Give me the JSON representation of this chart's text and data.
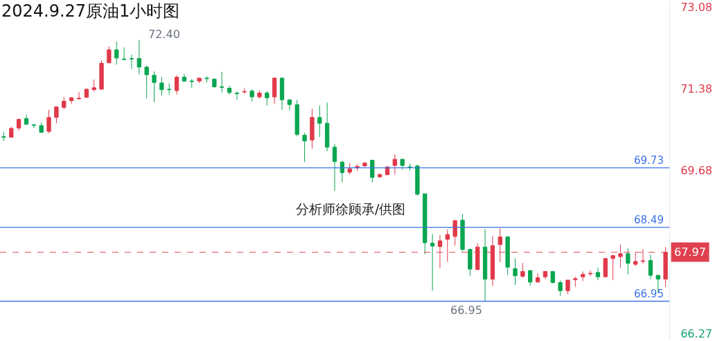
{
  "chart_data": {
    "type": "candlestick",
    "title": "2024.9.27原油1小时图",
    "categories": [
      null,
      null,
      null,
      null,
      null,
      null,
      null,
      null,
      null,
      null,
      null,
      null,
      null,
      null,
      null,
      null,
      null,
      null,
      null,
      null,
      null,
      null,
      null,
      null,
      null,
      null,
      null,
      null,
      null,
      null,
      null,
      null,
      null,
      null,
      null,
      null,
      null,
      null,
      null,
      null,
      null,
      null,
      null,
      null,
      null,
      null,
      null,
      null,
      null,
      null,
      null,
      null,
      null,
      null,
      null,
      null,
      null,
      null,
      null,
      null,
      null,
      null,
      null,
      null,
      null,
      null,
      null,
      null,
      null,
      null,
      null,
      null,
      null,
      null,
      null,
      null,
      null,
      null,
      null,
      null,
      null,
      null,
      null,
      null,
      null,
      null,
      null,
      null,
      null
    ],
    "ohlc": [
      [
        70.38,
        70.48,
        70.29,
        70.37
      ],
      [
        70.37,
        70.59,
        70.36,
        70.55
      ],
      [
        70.56,
        70.76,
        70.51,
        70.74
      ],
      [
        70.76,
        70.84,
        70.62,
        70.64
      ],
      [
        70.63,
        70.64,
        70.56,
        70.62
      ],
      [
        70.61,
        70.68,
        70.46,
        70.47
      ],
      [
        70.49,
        70.94,
        70.45,
        70.78
      ],
      [
        70.78,
        71.01,
        70.66,
        71.0
      ],
      [
        70.99,
        71.21,
        70.95,
        71.12
      ],
      [
        71.13,
        71.21,
        71.07,
        71.19
      ],
      [
        71.17,
        71.31,
        71.15,
        71.18
      ],
      [
        71.2,
        71.38,
        71.19,
        71.37
      ],
      [
        71.36,
        71.57,
        71.32,
        71.4
      ],
      [
        71.37,
        71.97,
        71.36,
        71.91
      ],
      [
        71.92,
        72.26,
        71.91,
        72.19
      ],
      [
        72.19,
        72.36,
        71.88,
        72.02
      ],
      [
        72.0,
        72.24,
        71.98,
        71.99
      ],
      [
        72.01,
        72.09,
        71.79,
        72.0
      ],
      [
        72.01,
        72.4,
        71.68,
        71.83
      ],
      [
        71.83,
        71.86,
        71.18,
        71.67
      ],
      [
        71.66,
        71.74,
        71.1,
        71.51
      ],
      [
        71.5,
        71.62,
        71.24,
        71.36
      ],
      [
        71.37,
        71.49,
        71.26,
        71.36
      ],
      [
        71.34,
        71.66,
        71.26,
        71.62
      ],
      [
        71.62,
        71.69,
        71.52,
        71.54
      ],
      [
        71.54,
        71.58,
        71.4,
        71.53
      ],
      [
        71.54,
        71.61,
        71.5,
        71.6
      ],
      [
        71.6,
        71.64,
        71.51,
        71.59
      ],
      [
        71.58,
        71.59,
        71.4,
        71.42
      ],
      [
        71.42,
        71.73,
        71.3,
        71.41
      ],
      [
        71.39,
        71.44,
        71.26,
        71.3
      ],
      [
        71.29,
        71.32,
        71.15,
        71.28
      ],
      [
        71.31,
        71.39,
        71.28,
        71.32
      ],
      [
        71.33,
        71.37,
        71.11,
        71.21
      ],
      [
        71.21,
        71.35,
        71.17,
        71.29
      ],
      [
        71.29,
        71.33,
        71.03,
        71.19
      ],
      [
        71.21,
        71.62,
        71.06,
        71.6
      ],
      [
        71.6,
        71.62,
        70.94,
        71.15
      ],
      [
        71.15,
        71.15,
        70.93,
        71.05
      ],
      [
        71.05,
        71.15,
        70.39,
        70.43
      ],
      [
        70.41,
        70.46,
        69.85,
        70.29
      ],
      [
        70.31,
        70.96,
        70.13,
        70.78
      ],
      [
        70.78,
        71.03,
        70.37,
        70.66
      ],
      [
        70.66,
        71.09,
        70.08,
        70.16
      ],
      [
        70.16,
        70.23,
        69.25,
        69.86
      ],
      [
        69.85,
        69.88,
        69.43,
        69.63
      ],
      [
        69.64,
        69.83,
        69.59,
        69.71
      ],
      [
        69.73,
        69.81,
        69.67,
        69.76
      ],
      [
        69.77,
        69.85,
        69.75,
        69.83
      ],
      [
        69.89,
        69.89,
        69.43,
        69.53
      ],
      [
        69.54,
        69.62,
        69.53,
        69.59
      ],
      [
        69.59,
        69.77,
        69.57,
        69.75
      ],
      [
        69.78,
        70.01,
        69.59,
        69.91
      ],
      [
        69.91,
        69.91,
        69.69,
        69.78
      ],
      [
        69.75,
        69.82,
        69.67,
        69.74
      ],
      [
        69.77,
        69.8,
        69.15,
        69.18
      ],
      [
        69.19,
        69.19,
        67.93,
        68.17
      ],
      [
        68.16,
        68.35,
        67.17,
        68.1
      ],
      [
        68.09,
        68.33,
        67.64,
        68.21
      ],
      [
        68.24,
        68.45,
        67.77,
        68.34
      ],
      [
        68.3,
        68.64,
        68.11,
        68.63
      ],
      [
        68.64,
        68.77,
        67.99,
        68.03
      ],
      [
        68.03,
        68.05,
        67.48,
        67.62
      ],
      [
        67.61,
        68.16,
        67.6,
        68.08
      ],
      [
        68.08,
        68.45,
        66.95,
        67.41
      ],
      [
        67.41,
        68.31,
        67.27,
        68.11
      ],
      [
        68.13,
        68.47,
        67.77,
        68.29
      ],
      [
        68.29,
        68.31,
        67.5,
        67.66
      ],
      [
        67.63,
        67.84,
        67.29,
        67.48
      ],
      [
        67.47,
        67.75,
        67.44,
        67.57
      ],
      [
        67.59,
        67.59,
        67.27,
        67.35
      ],
      [
        67.35,
        67.53,
        67.34,
        67.44
      ],
      [
        67.46,
        67.58,
        67.41,
        67.57
      ],
      [
        67.57,
        67.58,
        67.32,
        67.34
      ],
      [
        67.34,
        67.38,
        67.06,
        67.17
      ],
      [
        67.17,
        67.4,
        67.1,
        67.39
      ],
      [
        67.4,
        67.46,
        67.25,
        67.42
      ],
      [
        67.46,
        67.57,
        67.37,
        67.51
      ],
      [
        67.52,
        67.59,
        67.48,
        67.53
      ],
      [
        67.55,
        67.65,
        67.39,
        67.46
      ],
      [
        67.46,
        67.85,
        67.45,
        67.84
      ],
      [
        67.84,
        67.92,
        67.39,
        67.9
      ],
      [
        67.88,
        68.13,
        67.65,
        67.94
      ],
      [
        67.94,
        68.06,
        67.51,
        67.74
      ],
      [
        67.72,
        67.98,
        67.68,
        67.78
      ],
      [
        67.78,
        68.03,
        67.73,
        67.79
      ],
      [
        67.8,
        67.92,
        67.41,
        67.49
      ],
      [
        67.49,
        67.49,
        67.12,
        67.41
      ],
      [
        67.41,
        68.08,
        67.25,
        67.97
      ]
    ],
    "ylim": [
      66.15,
      73.2
    ],
    "yticks": [
      73.08,
      71.38,
      69.68,
      66.27
    ],
    "grid": false,
    "ref_lines": [
      {
        "axis": "y",
        "value": 69.73,
        "label": "69.73",
        "color": "#3d73e8",
        "line_style": "solid"
      },
      {
        "axis": "y",
        "value": 68.49,
        "label": "68.49",
        "color": "#3d73e8",
        "line_style": "solid"
      },
      {
        "axis": "y",
        "value": 66.95,
        "label": "66.95",
        "color": "#3d73e8",
        "line_style": "solid"
      },
      {
        "axis": "y",
        "value": 67.97,
        "label": "67.97",
        "color": "#e0414f",
        "line_style": "dashed"
      }
    ],
    "annotations": [
      "72.40",
      "66.95",
      "分析师徐顾承/供图"
    ]
  }
}
